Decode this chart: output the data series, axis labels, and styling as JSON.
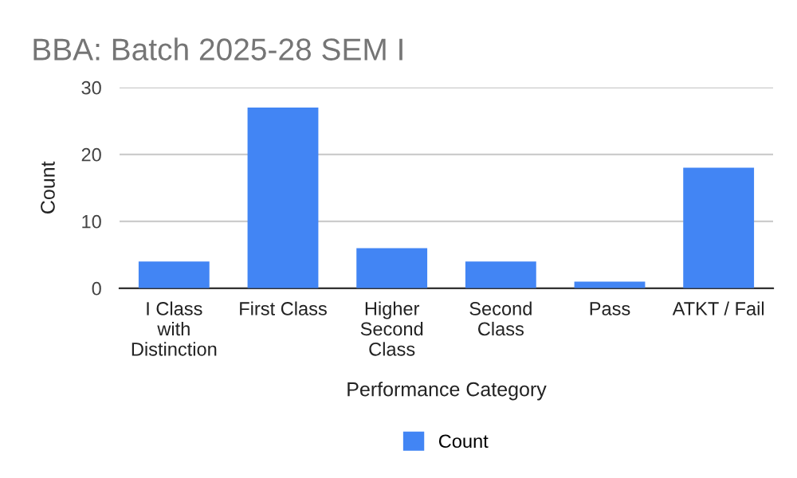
{
  "chart_data": {
    "type": "bar",
    "title": "BBA: Batch 2025-28 SEM I",
    "categories": [
      "I Class with Distinction",
      "First Class",
      "Higher Second Class",
      "Second Class",
      "Pass",
      "ATKT / Fail"
    ],
    "series": [
      {
        "name": "Count",
        "color": "#4285f4",
        "values": [
          4,
          27,
          6,
          4,
          1,
          18
        ]
      }
    ],
    "xlabel": "Performance Category",
    "ylabel": "Count",
    "ylim": [
      0,
      30
    ],
    "yticks": [
      0,
      10,
      20,
      30
    ],
    "grid": "y",
    "legend": "bottom"
  }
}
